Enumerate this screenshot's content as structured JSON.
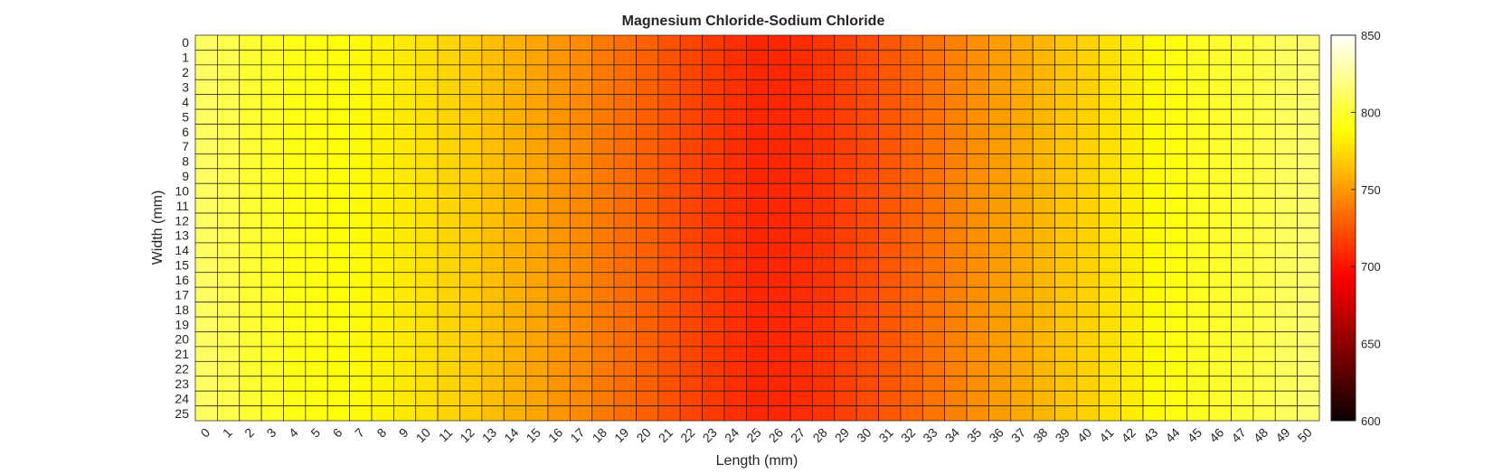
{
  "chart_data": {
    "type": "heatmap",
    "title": "Magnesium Chloride-Sodium Chloride",
    "xlabel": "Length (mm)",
    "ylabel": "Width (mm)",
    "x_ticks": [
      "0",
      "1",
      "2",
      "3",
      "4",
      "5",
      "6",
      "7",
      "8",
      "9",
      "10",
      "11",
      "12",
      "13",
      "14",
      "15",
      "16",
      "17",
      "18",
      "19",
      "20",
      "21",
      "22",
      "23",
      "24",
      "25",
      "26",
      "27",
      "28",
      "29",
      "30",
      "31",
      "32",
      "33",
      "34",
      "35",
      "36",
      "37",
      "38",
      "39",
      "40",
      "41",
      "42",
      "43",
      "44",
      "45",
      "46",
      "47",
      "48",
      "49",
      "50"
    ],
    "y_ticks": [
      "0",
      "1",
      "2",
      "3",
      "4",
      "5",
      "6",
      "7",
      "8",
      "9",
      "10",
      "11",
      "12",
      "13",
      "14",
      "15",
      "16",
      "17",
      "18",
      "19",
      "20",
      "21",
      "22",
      "23",
      "24",
      "25"
    ],
    "column_values": [
      812,
      806,
      800,
      796,
      793,
      791,
      789,
      786,
      783,
      780,
      776,
      772,
      768,
      764,
      759,
      754,
      749,
      744,
      739,
      734,
      729,
      724,
      719,
      715,
      711,
      708,
      708,
      710,
      713,
      717,
      721,
      726,
      731,
      736,
      741,
      746,
      751,
      756,
      761,
      766,
      771,
      776,
      781,
      786,
      791,
      795,
      798,
      801,
      805,
      810,
      815
    ],
    "colormap": "hot",
    "clim": [
      600,
      850
    ],
    "colorbar_ticks": [
      "600",
      "650",
      "700",
      "750",
      "800",
      "850"
    ],
    "colorbar_tick_values": [
      600,
      650,
      700,
      750,
      800,
      850
    ],
    "grid_line_color": "#1a1a1a"
  }
}
